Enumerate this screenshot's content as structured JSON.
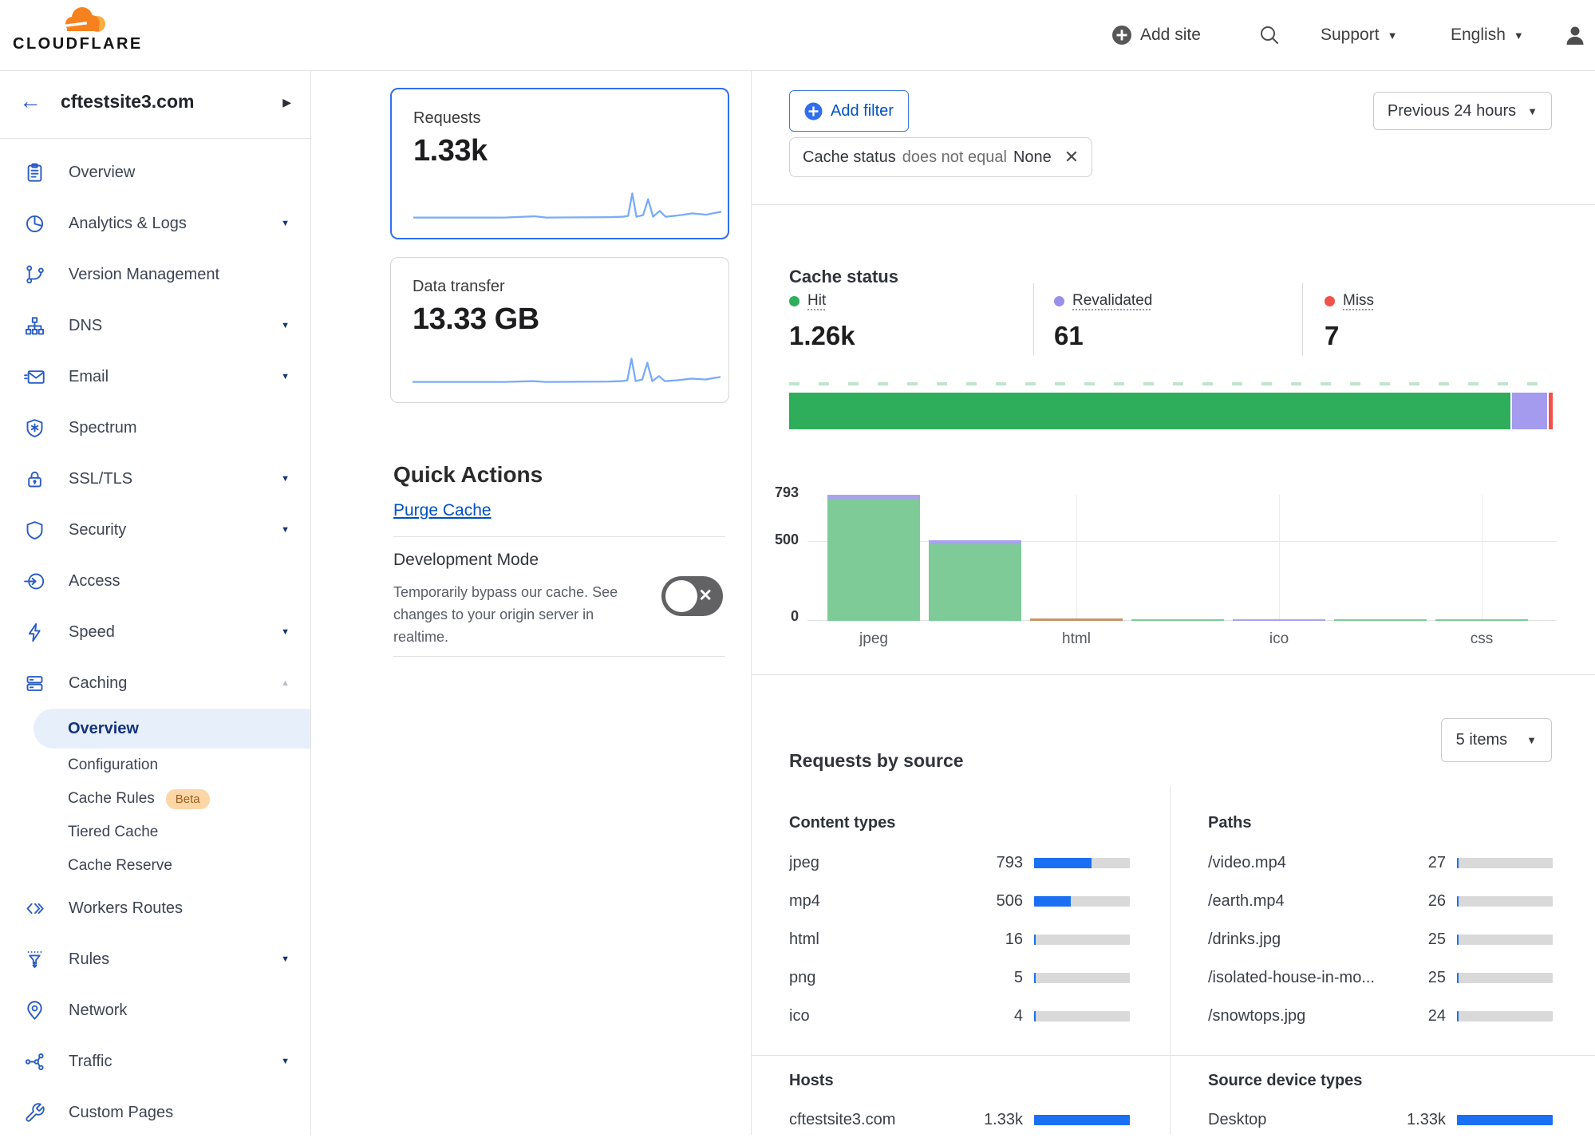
{
  "header": {
    "brand": "CLOUDFLARE",
    "add_site": "Add site",
    "support": "Support",
    "language": "English"
  },
  "sidebar": {
    "site": "cftestsite3.com",
    "items": [
      {
        "label": "Overview"
      },
      {
        "label": "Analytics & Logs"
      },
      {
        "label": "Version Management"
      },
      {
        "label": "DNS"
      },
      {
        "label": "Email"
      },
      {
        "label": "Spectrum"
      },
      {
        "label": "SSL/TLS"
      },
      {
        "label": "Security"
      },
      {
        "label": "Access"
      },
      {
        "label": "Speed"
      },
      {
        "label": "Caching"
      },
      {
        "label": "Workers Routes"
      },
      {
        "label": "Rules"
      },
      {
        "label": "Network"
      },
      {
        "label": "Traffic"
      },
      {
        "label": "Custom Pages"
      }
    ],
    "caching_sub": [
      {
        "label": "Overview",
        "selected": true
      },
      {
        "label": "Configuration"
      },
      {
        "label": "Cache Rules",
        "badge": "Beta"
      },
      {
        "label": "Tiered Cache"
      },
      {
        "label": "Cache Reserve"
      }
    ]
  },
  "metrics": {
    "requests": {
      "label": "Requests",
      "value": "1.33k"
    },
    "data_transfer": {
      "label": "Data transfer",
      "value": "13.33 GB"
    }
  },
  "quick_actions": {
    "title": "Quick Actions",
    "purge_cache": "Purge Cache",
    "dev_mode": {
      "title": "Development Mode",
      "description": "Temporarily bypass our cache. See changes to your origin server in realtime.",
      "state": "off"
    }
  },
  "filters": {
    "add_filter": "Add filter",
    "chip": {
      "field": "Cache status",
      "operator": "does not equal",
      "value": "None"
    },
    "time_range": "Previous 24 hours"
  },
  "cache_status": {
    "title": "Cache status",
    "legend": [
      {
        "label": "Hit",
        "value": "1.26k",
        "num": 1260,
        "color": "#2eae5b"
      },
      {
        "label": "Revalidated",
        "value": "61",
        "num": 61,
        "color": "#9a90ea"
      },
      {
        "label": "Miss",
        "value": "7",
        "num": 7,
        "color": "#f2514b"
      }
    ],
    "chart": {
      "type": "bar",
      "ymax": 793,
      "y_ticks": [
        "793",
        "500",
        "0"
      ],
      "colors": {
        "hit": "#7ecb97",
        "revalidated": "#a9a2ee",
        "other": "#c6946a"
      },
      "bars": [
        {
          "label": "jpeg",
          "segments": [
            {
              "k": "hit",
              "v": 770
            },
            {
              "k": "revalidated",
              "v": 23
            }
          ]
        },
        {
          "label": "",
          "segments": [
            {
              "k": "hit",
              "v": 480
            },
            {
              "k": "revalidated",
              "v": 26
            }
          ]
        },
        {
          "label": "html",
          "segments": [
            {
              "k": "other",
              "v": 16
            }
          ]
        },
        {
          "label": "",
          "segments": [
            {
              "k": "hit",
              "v": 5
            }
          ]
        },
        {
          "label": "ico",
          "segments": [
            {
              "k": "revalidated",
              "v": 4
            }
          ]
        },
        {
          "label": "",
          "segments": [
            {
              "k": "hit",
              "v": 2
            }
          ]
        },
        {
          "label": "css",
          "segments": [
            {
              "k": "hit",
              "v": 1
            }
          ]
        }
      ]
    }
  },
  "requests_by_source": {
    "title": "Requests by source",
    "items_count": "5 items",
    "total": 1328,
    "content_types": {
      "title": "Content types",
      "rows": [
        {
          "label": "jpeg",
          "value": "793",
          "num": 793
        },
        {
          "label": "mp4",
          "value": "506",
          "num": 506
        },
        {
          "label": "html",
          "value": "16",
          "num": 16
        },
        {
          "label": "png",
          "value": "5",
          "num": 5
        },
        {
          "label": "ico",
          "value": "4",
          "num": 4
        }
      ]
    },
    "paths": {
      "title": "Paths",
      "rows": [
        {
          "label": "/video.mp4",
          "value": "27",
          "num": 27
        },
        {
          "label": "/earth.mp4",
          "value": "26",
          "num": 26
        },
        {
          "label": "/drinks.jpg",
          "value": "25",
          "num": 25
        },
        {
          "label": "/isolated-house-in-mo...",
          "value": "25",
          "num": 25
        },
        {
          "label": "/snowtops.jpg",
          "value": "24",
          "num": 24
        }
      ]
    },
    "hosts": {
      "title": "Hosts",
      "rows": [
        {
          "label": "cftestsite3.com",
          "value": "1.33k",
          "num": 1328
        }
      ]
    },
    "devices": {
      "title": "Source device types",
      "rows": [
        {
          "label": "Desktop",
          "value": "1.33k",
          "num": 1328
        }
      ]
    }
  }
}
